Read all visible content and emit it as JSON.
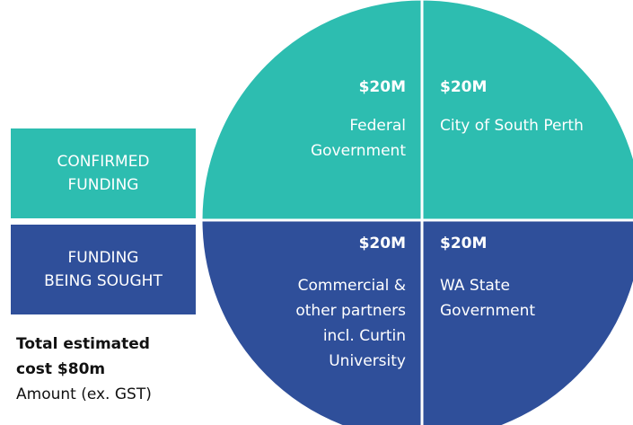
{
  "chart_data": {
    "type": "pie",
    "slices": [
      {
        "name": [
          "City of South Perth"
        ],
        "value": 20,
        "value_label": "$20M",
        "color": "#2dbdb0"
      },
      {
        "name": [
          "WA State",
          "Government"
        ],
        "value": 20,
        "value_label": "$20M",
        "color": "#2f4f9a"
      },
      {
        "name": [
          "Commercial &",
          "other partners",
          "incl. Curtin",
          "University"
        ],
        "value": 20,
        "value_label": "$20M",
        "color": "#2f4f9a"
      },
      {
        "name": [
          "Federal",
          "Government"
        ],
        "value": 20,
        "value_label": "$20M",
        "color": "#2dbdb0"
      }
    ],
    "legend": [
      {
        "label": [
          "CONFIRMED",
          "FUNDING"
        ],
        "color": "#2dbdb0"
      },
      {
        "label": [
          "FUNDING",
          "BEING SOUGHT"
        ],
        "color": "#2f4f9a"
      }
    ],
    "note": {
      "bold": [
        "Total estimated",
        "cost $80m"
      ],
      "text": "Amount (ex. GST)"
    }
  }
}
